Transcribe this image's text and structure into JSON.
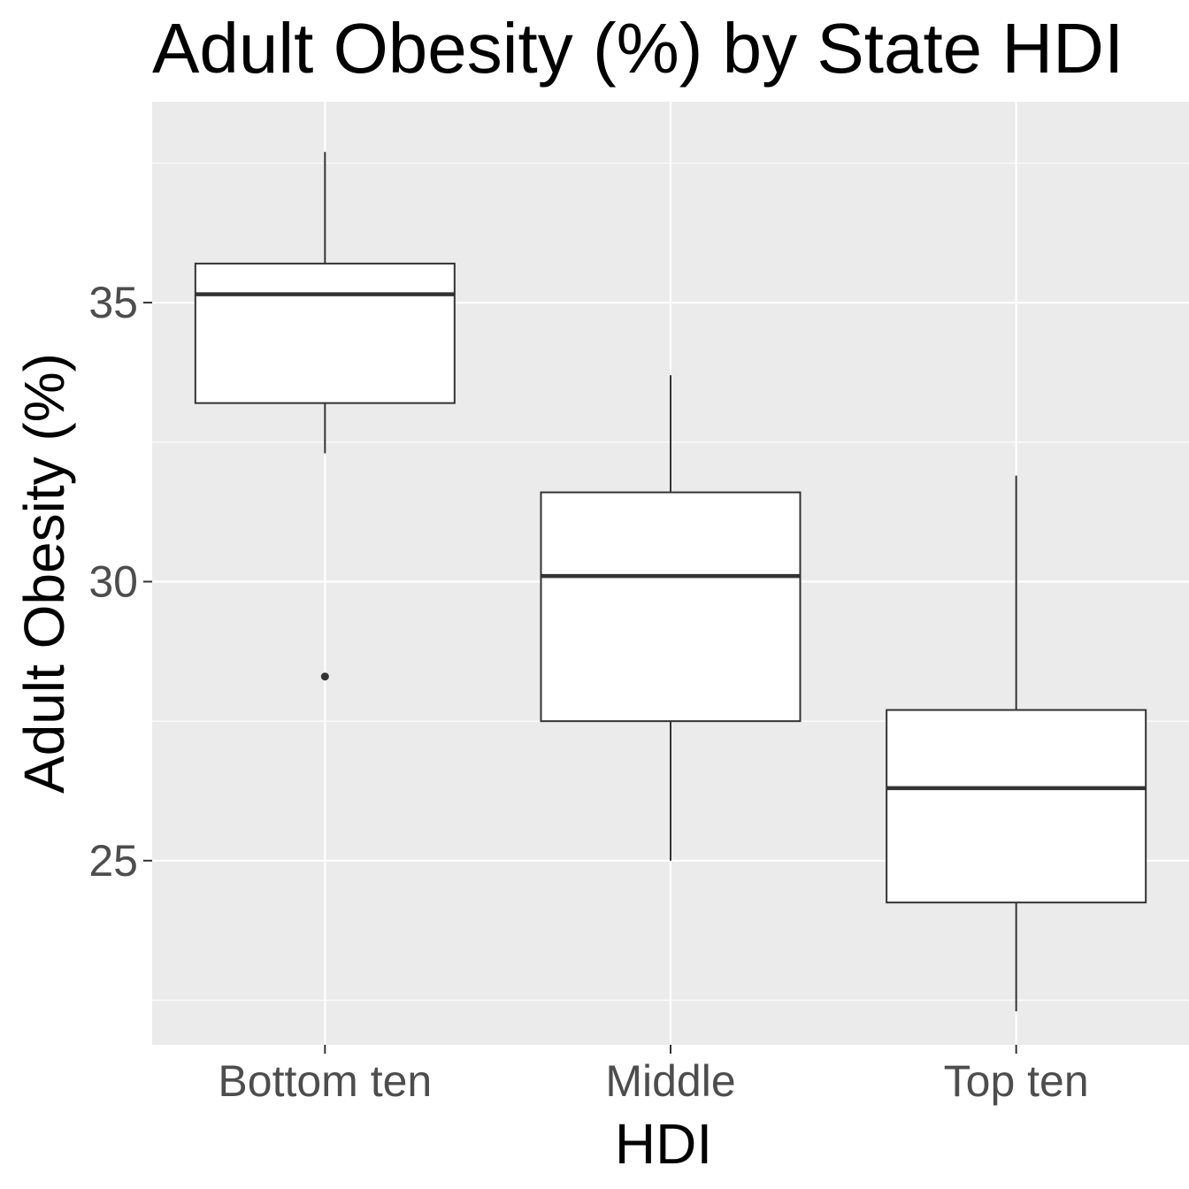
{
  "chart_data": {
    "type": "boxplot",
    "title": "Adult Obesity (%) by State HDI",
    "xlabel": "HDI",
    "ylabel": "Adult Obesity (%)",
    "categories": [
      "Bottom ten",
      "Middle",
      "Top ten"
    ],
    "ylim": [
      21.7,
      38.6
    ],
    "yticks": [
      25,
      30,
      35
    ],
    "yticklabels": [
      "25",
      "30",
      "35"
    ],
    "grid": true,
    "legend": "none",
    "background_color": "#ebebeb",
    "grid_color": "#ffffff",
    "box_fill": "#ffffff",
    "box_line_color": "#333333",
    "boxes": [
      {
        "category": "Bottom ten",
        "whisker_low": 32.3,
        "q1": 33.2,
        "median": 35.15,
        "q3": 35.7,
        "whisker_high": 37.7,
        "outliers": [
          28.3
        ]
      },
      {
        "category": "Middle",
        "whisker_low": 25.0,
        "q1": 27.5,
        "median": 30.1,
        "q3": 31.6,
        "whisker_high": 33.7,
        "outliers": []
      },
      {
        "category": "Top ten",
        "whisker_low": 22.3,
        "q1": 24.25,
        "median": 26.3,
        "q3": 27.7,
        "whisker_high": 31.9,
        "outliers": []
      }
    ]
  }
}
